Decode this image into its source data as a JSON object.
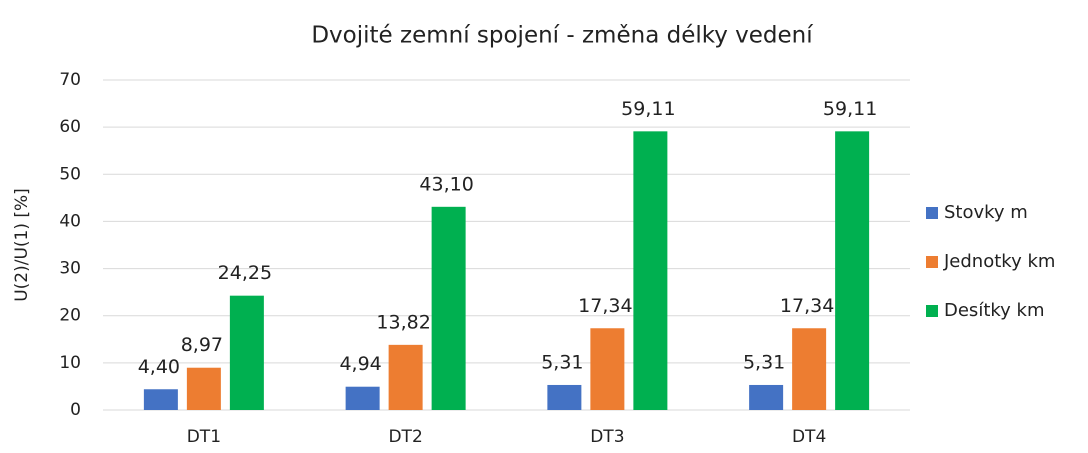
{
  "chart_data": {
    "type": "bar",
    "title": "Dvojité zemní spojení - změna délky vedení",
    "y_label": "U(2)/U(1) [%]",
    "categories": [
      "DT1",
      "DT2",
      "DT3",
      "DT4"
    ],
    "series": [
      {
        "name": "Stovky m",
        "color": "#4472c4",
        "values": [
          4.4,
          4.94,
          5.31,
          5.31
        ],
        "value_labels": [
          "4,40",
          "4,94",
          "5,31",
          "5,31"
        ]
      },
      {
        "name": "Jednotky km",
        "color": "#ed7d31",
        "values": [
          8.97,
          13.82,
          17.34,
          17.34
        ],
        "value_labels": [
          "8,97",
          "13,82",
          "17,34",
          "17,34"
        ]
      },
      {
        "name": "Desítky km",
        "color": "#00b050",
        "values": [
          24.25,
          43.1,
          59.11,
          59.11
        ],
        "value_labels": [
          "24,25",
          "43,10",
          "59,11",
          "59,11"
        ]
      }
    ],
    "ylim": [
      0,
      70
    ],
    "yticks": [
      0,
      10,
      20,
      30,
      40,
      50,
      60,
      70
    ],
    "grid": true,
    "legend": "right"
  }
}
